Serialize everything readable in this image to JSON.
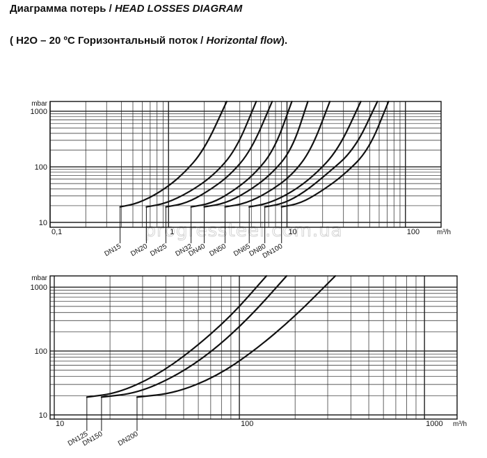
{
  "header": {
    "title_ru": "Диаграмма потерь / ",
    "title_en": "HEAD LOSSES DIAGRAM",
    "sub_open": "( H2O – 20 ºC  Горизонтальный поток / ",
    "sub_en": "Horizontal flow",
    "sub_close": ")."
  },
  "watermark": "progressteel.com.ua",
  "chart_data": [
    {
      "type": "line",
      "title": "",
      "xlabel": "m³/h",
      "ylabel": "mbar",
      "xscale": "log",
      "yscale": "log",
      "xlim": [
        0.1,
        200
      ],
      "ylim": [
        10,
        1500
      ],
      "x_tick_labels": [
        "0,1",
        "1",
        "10",
        "100"
      ],
      "y_tick_labels": [
        "10",
        "100",
        "1000"
      ],
      "grid": true,
      "legend": "none",
      "series": [
        {
          "name": "DN15",
          "x": [
            0.39,
            0.55,
            0.85,
            1.3,
            2.0,
            3.1
          ],
          "y": [
            19,
            22,
            35,
            70,
            200,
            1500
          ]
        },
        {
          "name": "DN20",
          "x": [
            0.65,
            0.95,
            1.5,
            2.4,
            3.7,
            5.5
          ],
          "y": [
            19,
            22,
            35,
            70,
            200,
            1500
          ]
        },
        {
          "name": "DN25",
          "x": [
            0.95,
            1.4,
            2.1,
            3.3,
            5.0,
            7.5
          ],
          "y": [
            19,
            22,
            35,
            70,
            200,
            1500
          ]
        },
        {
          "name": "DN32",
          "x": [
            1.55,
            2.3,
            3.4,
            5.2,
            7.8,
            11
          ],
          "y": [
            19,
            22,
            35,
            70,
            200,
            1500
          ]
        },
        {
          "name": "DN40",
          "x": [
            2.0,
            3.0,
            4.6,
            7.2,
            11,
            15
          ],
          "y": [
            19,
            22,
            35,
            70,
            200,
            1500
          ]
        },
        {
          "name": "DN50",
          "x": [
            3.0,
            4.5,
            7.0,
            11,
            16,
            23
          ],
          "y": [
            19,
            22,
            35,
            70,
            200,
            1500
          ]
        },
        {
          "name": "DN65",
          "x": [
            4.8,
            7.0,
            11,
            17,
            27,
            42
          ],
          "y": [
            19,
            22,
            35,
            70,
            200,
            1500
          ]
        },
        {
          "name": "DN80",
          "x": [
            6.5,
            9.5,
            14,
            21,
            37,
            58
          ],
          "y": [
            19,
            22,
            35,
            70,
            200,
            1500
          ]
        },
        {
          "name": "DN100",
          "x": [
            9.0,
            13,
            19,
            30,
            49,
            72
          ],
          "y": [
            19,
            22,
            35,
            70,
            200,
            1500
          ]
        }
      ]
    },
    {
      "type": "line",
      "title": "",
      "xlabel": "m³/h",
      "ylabel": "mbar",
      "xscale": "log",
      "yscale": "log",
      "xlim": [
        10,
        1500
      ],
      "ylim": [
        10,
        1500
      ],
      "x_tick_labels": [
        "10",
        "100",
        "1000"
      ],
      "y_tick_labels": [
        "10",
        "100",
        "1000"
      ],
      "grid": true,
      "legend": "none",
      "series": [
        {
          "name": "DN125",
          "x": [
            15,
            22,
            35,
            55,
            90,
            140
          ],
          "y": [
            19,
            22,
            40,
            100,
            350,
            1500
          ]
        },
        {
          "name": "DN150",
          "x": [
            18,
            28,
            45,
            72,
            115,
            180
          ],
          "y": [
            19,
            22,
            40,
            100,
            350,
            1500
          ]
        },
        {
          "name": "DN200",
          "x": [
            28,
            45,
            75,
            120,
            200,
            330
          ],
          "y": [
            19,
            22,
            40,
            100,
            350,
            1500
          ]
        }
      ]
    }
  ]
}
